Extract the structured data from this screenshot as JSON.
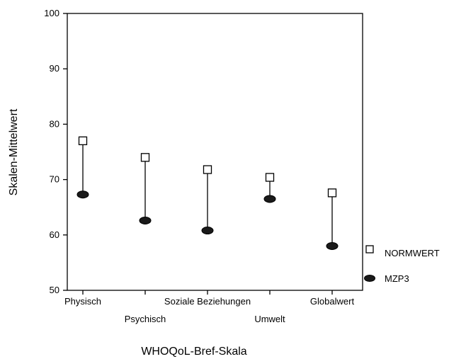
{
  "chart_data": {
    "type": "dot-range",
    "title": "",
    "xlabel": "WHOQoL-Bref-Skala",
    "ylabel": "Skalen-Mittelwert",
    "ylim": [
      50,
      100
    ],
    "yticks": [
      50,
      60,
      70,
      80,
      90,
      100
    ],
    "grid": false,
    "legend_position": "right",
    "categories": [
      "Physisch",
      "Psychisch",
      "Soziale Beziehungen",
      "Umwelt",
      "Globalwert"
    ],
    "series": [
      {
        "name": "NORMWERT",
        "marker": "open-square",
        "color": "#000000",
        "values": [
          77.0,
          74.0,
          71.8,
          70.4,
          67.6
        ]
      },
      {
        "name": "MZP3",
        "marker": "filled-ellipse",
        "color": "#1a1a1a",
        "values": [
          67.3,
          62.6,
          60.8,
          66.5,
          58.0
        ]
      }
    ]
  }
}
